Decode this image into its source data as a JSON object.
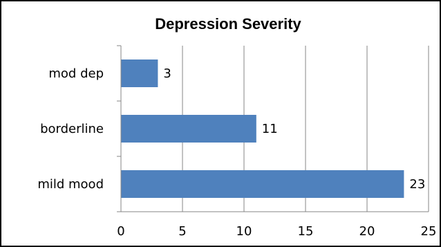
{
  "chart_data": {
    "type": "bar",
    "orientation": "horizontal",
    "title": "Depression Severity",
    "categories": [
      "mild mood",
      "borderline",
      "mod dep"
    ],
    "values": [
      23,
      11,
      3
    ],
    "data_labels": [
      "23",
      "11",
      "3"
    ],
    "xlim": [
      0,
      25
    ],
    "x_ticks": [
      0,
      5,
      10,
      15,
      20,
      25
    ],
    "x_tick_labels": [
      "0",
      "5",
      "10",
      "15",
      "20",
      "25"
    ],
    "grid": "vertical",
    "legend": "none",
    "bar_color": "#4F81BD"
  }
}
